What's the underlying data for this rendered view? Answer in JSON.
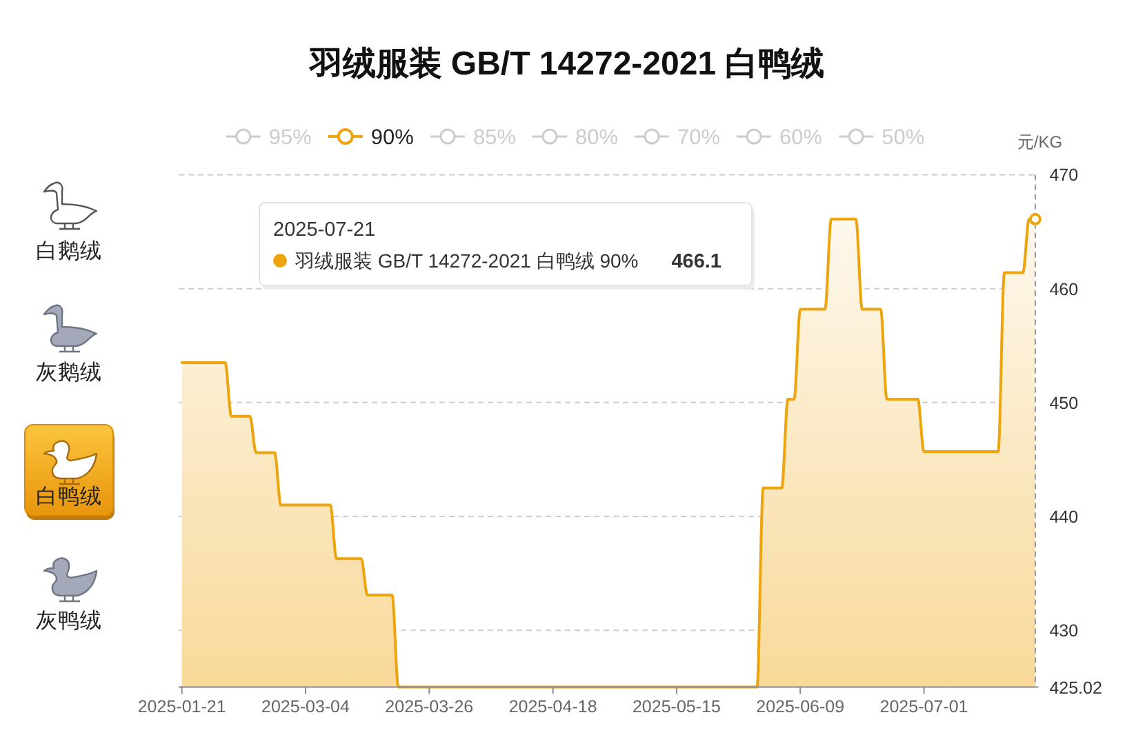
{
  "chart_data": {
    "type": "area",
    "title": "羽绒服装 GB/T 14272-2021 白鸭绒",
    "ylabel": "元/KG",
    "categories": [
      "2025-01-21",
      null,
      null,
      null,
      null,
      null,
      null,
      null,
      null,
      null,
      null,
      null,
      null,
      null,
      null,
      null,
      null,
      null,
      null,
      null,
      "2025-03-04",
      null,
      null,
      null,
      null,
      null,
      null,
      null,
      null,
      null,
      null,
      null,
      null,
      null,
      null,
      null,
      null,
      null,
      null,
      null,
      "2025-03-26",
      null,
      null,
      null,
      null,
      null,
      null,
      null,
      null,
      null,
      null,
      null,
      null,
      null,
      null,
      null,
      null,
      null,
      null,
      null,
      "2025-04-18",
      null,
      null,
      null,
      null,
      null,
      null,
      null,
      null,
      null,
      null,
      null,
      null,
      null,
      null,
      null,
      null,
      null,
      null,
      null,
      "2025-05-15",
      null,
      null,
      null,
      null,
      null,
      null,
      null,
      null,
      null,
      null,
      null,
      null,
      null,
      null,
      null,
      null,
      null,
      null,
      null,
      "2025-06-09",
      null,
      null,
      null,
      null,
      null,
      null,
      null,
      null,
      null,
      null,
      null,
      null,
      null,
      null,
      null,
      null,
      null,
      null,
      null,
      "2025-07-01",
      null,
      null,
      null,
      null,
      null,
      null,
      null,
      null,
      null,
      null,
      null,
      null,
      null,
      null,
      null,
      null,
      null,
      null
    ],
    "series": [
      {
        "name": "95%",
        "color": "#cccccc",
        "values": [
          null,
          null,
          null,
          null,
          null,
          null,
          null,
          null,
          null,
          null,
          null,
          null,
          null,
          null,
          null,
          null,
          null,
          null,
          null,
          null,
          null,
          null,
          null,
          null,
          null,
          null,
          null,
          null,
          null,
          null,
          null,
          null,
          null,
          null,
          null,
          null,
          null,
          null,
          null,
          null,
          null,
          null,
          null,
          null,
          null,
          null,
          null,
          null,
          null,
          null,
          null,
          null,
          null,
          null,
          null,
          null,
          null,
          null,
          null,
          null,
          null,
          null,
          null,
          null,
          null,
          null,
          null,
          null,
          null,
          null,
          null,
          null,
          null,
          null,
          null,
          null,
          null,
          null,
          null,
          null,
          null,
          null,
          null,
          null,
          null,
          null,
          null,
          null,
          null,
          null,
          null,
          null,
          null,
          null,
          null,
          null,
          null,
          null,
          null,
          null,
          null,
          null,
          null,
          null,
          null,
          null,
          null,
          null,
          null,
          null,
          null,
          null,
          null,
          null,
          null,
          null,
          null,
          null,
          null,
          null,
          null,
          null,
          null,
          null,
          null,
          null,
          null,
          null,
          null,
          null,
          null,
          null,
          null,
          null,
          null,
          null,
          null,
          null,
          null
        ]
      },
      {
        "name": "90%",
        "color": "#eea40c",
        "values": [
          453.5,
          453.5,
          453.5,
          453.5,
          453.5,
          453.5,
          453.5,
          453.5,
          448.8,
          448.8,
          448.8,
          448.8,
          445.6,
          445.6,
          445.6,
          445.6,
          441,
          441,
          441,
          441,
          441,
          441,
          441,
          441,
          441,
          436.3,
          436.3,
          436.3,
          436.3,
          436.3,
          433.1,
          433.1,
          433.1,
          433.1,
          433.1,
          425.02,
          425.02,
          425.02,
          425.02,
          425.02,
          425.02,
          425.02,
          425.02,
          425.02,
          425.02,
          425.02,
          425.02,
          425.02,
          425.02,
          425.02,
          425.02,
          425.02,
          425.02,
          425.02,
          425.02,
          425.02,
          425.02,
          425.02,
          425.02,
          425.02,
          425.02,
          425.02,
          425.02,
          425.02,
          425.02,
          425.02,
          425.02,
          425.02,
          425.02,
          425.02,
          425.02,
          425.02,
          425.02,
          425.02,
          425.02,
          425.02,
          425.02,
          425.02,
          425.02,
          425.02,
          425.02,
          425.02,
          425.02,
          425.02,
          425.02,
          425.02,
          425.02,
          425.02,
          425.02,
          425.02,
          425.02,
          425.02,
          425.02,
          425.02,
          442.5,
          442.5,
          442.5,
          442.5,
          450.3,
          450.3,
          458.2,
          458.2,
          458.2,
          458.2,
          458.2,
          466.1,
          466.1,
          466.1,
          466.1,
          466.1,
          458.2,
          458.2,
          458.2,
          458.2,
          450.3,
          450.3,
          450.3,
          450.3,
          450.3,
          450.3,
          445.7,
          445.7,
          445.7,
          445.7,
          445.7,
          445.7,
          445.7,
          445.7,
          445.7,
          445.7,
          445.7,
          445.7,
          445.7,
          461.4,
          461.4,
          461.4,
          461.4,
          466.1,
          466.1
        ]
      },
      {
        "name": "85%",
        "color": "#cccccc",
        "values": [
          null,
          null,
          null,
          null,
          null,
          null,
          null,
          null,
          null,
          null,
          null,
          null,
          null,
          null,
          null,
          null,
          null,
          null,
          null,
          null,
          null,
          null,
          null,
          null,
          null,
          null,
          null,
          null,
          null,
          null,
          null,
          null,
          null,
          null,
          null,
          null,
          null,
          null,
          null,
          null,
          null,
          null,
          null,
          null,
          null,
          null,
          null,
          null,
          null,
          null,
          null,
          null,
          null,
          null,
          null,
          null,
          null,
          null,
          null,
          null,
          null,
          null,
          null,
          null,
          null,
          null,
          null,
          null,
          null,
          null,
          null,
          null,
          null,
          null,
          null,
          null,
          null,
          null,
          null,
          null,
          null,
          null,
          null,
          null,
          null,
          null,
          null,
          null,
          null,
          null,
          null,
          null,
          null,
          null,
          null,
          null,
          null,
          null,
          null,
          null,
          null,
          null,
          null,
          null,
          null,
          null,
          null,
          null,
          null,
          null,
          null,
          null,
          null,
          null,
          null,
          null,
          null,
          null,
          null,
          null,
          null,
          null,
          null,
          null,
          null,
          null,
          null,
          null,
          null,
          null,
          null,
          null,
          null,
          null,
          null,
          null,
          null,
          null,
          null
        ]
      },
      {
        "name": "80%",
        "color": "#cccccc",
        "values": [
          null,
          null,
          null,
          null,
          null,
          null,
          null,
          null,
          null,
          null,
          null,
          null,
          null,
          null,
          null,
          null,
          null,
          null,
          null,
          null,
          null,
          null,
          null,
          null,
          null,
          null,
          null,
          null,
          null,
          null,
          null,
          null,
          null,
          null,
          null,
          null,
          null,
          null,
          null,
          null,
          null,
          null,
          null,
          null,
          null,
          null,
          null,
          null,
          null,
          null,
          null,
          null,
          null,
          null,
          null,
          null,
          null,
          null,
          null,
          null,
          null,
          null,
          null,
          null,
          null,
          null,
          null,
          null,
          null,
          null,
          null,
          null,
          null,
          null,
          null,
          null,
          null,
          null,
          null,
          null,
          null,
          null,
          null,
          null,
          null,
          null,
          null,
          null,
          null,
          null,
          null,
          null,
          null,
          null,
          null,
          null,
          null,
          null,
          null,
          null,
          null,
          null,
          null,
          null,
          null,
          null,
          null,
          null,
          null,
          null,
          null,
          null,
          null,
          null,
          null,
          null,
          null,
          null,
          null,
          null,
          null,
          null,
          null,
          null,
          null,
          null,
          null,
          null,
          null,
          null,
          null,
          null,
          null,
          null,
          null,
          null,
          null,
          null,
          null
        ]
      },
      {
        "name": "70%",
        "color": "#cccccc",
        "values": [
          null,
          null,
          null,
          null,
          null,
          null,
          null,
          null,
          null,
          null,
          null,
          null,
          null,
          null,
          null,
          null,
          null,
          null,
          null,
          null,
          null,
          null,
          null,
          null,
          null,
          null,
          null,
          null,
          null,
          null,
          null,
          null,
          null,
          null,
          null,
          null,
          null,
          null,
          null,
          null,
          null,
          null,
          null,
          null,
          null,
          null,
          null,
          null,
          null,
          null,
          null,
          null,
          null,
          null,
          null,
          null,
          null,
          null,
          null,
          null,
          null,
          null,
          null,
          null,
          null,
          null,
          null,
          null,
          null,
          null,
          null,
          null,
          null,
          null,
          null,
          null,
          null,
          null,
          null,
          null,
          null,
          null,
          null,
          null,
          null,
          null,
          null,
          null,
          null,
          null,
          null,
          null,
          null,
          null,
          null,
          null,
          null,
          null,
          null,
          null,
          null,
          null,
          null,
          null,
          null,
          null,
          null,
          null,
          null,
          null,
          null,
          null,
          null,
          null,
          null,
          null,
          null,
          null,
          null,
          null,
          null,
          null,
          null,
          null,
          null,
          null,
          null,
          null,
          null,
          null,
          null,
          null,
          null,
          null,
          null,
          null,
          null,
          null,
          null
        ]
      },
      {
        "name": "60%",
        "color": "#cccccc",
        "values": [
          null,
          null,
          null,
          null,
          null,
          null,
          null,
          null,
          null,
          null,
          null,
          null,
          null,
          null,
          null,
          null,
          null,
          null,
          null,
          null,
          null,
          null,
          null,
          null,
          null,
          null,
          null,
          null,
          null,
          null,
          null,
          null,
          null,
          null,
          null,
          null,
          null,
          null,
          null,
          null,
          null,
          null,
          null,
          null,
          null,
          null,
          null,
          null,
          null,
          null,
          null,
          null,
          null,
          null,
          null,
          null,
          null,
          null,
          null,
          null,
          null,
          null,
          null,
          null,
          null,
          null,
          null,
          null,
          null,
          null,
          null,
          null,
          null,
          null,
          null,
          null,
          null,
          null,
          null,
          null,
          null,
          null,
          null,
          null,
          null,
          null,
          null,
          null,
          null,
          null,
          null,
          null,
          null,
          null,
          null,
          null,
          null,
          null,
          null,
          null,
          null,
          null,
          null,
          null,
          null,
          null,
          null,
          null,
          null,
          null,
          null,
          null,
          null,
          null,
          null,
          null,
          null,
          null,
          null,
          null,
          null,
          null,
          null,
          null,
          null,
          null,
          null,
          null,
          null,
          null,
          null,
          null,
          null,
          null,
          null,
          null,
          null,
          null,
          null
        ]
      },
      {
        "name": "50%",
        "color": "#cccccc",
        "values": [
          null,
          null,
          null,
          null,
          null,
          null,
          null,
          null,
          null,
          null,
          null,
          null,
          null,
          null,
          null,
          null,
          null,
          null,
          null,
          null,
          null,
          null,
          null,
          null,
          null,
          null,
          null,
          null,
          null,
          null,
          null,
          null,
          null,
          null,
          null,
          null,
          null,
          null,
          null,
          null,
          null,
          null,
          null,
          null,
          null,
          null,
          null,
          null,
          null,
          null,
          null,
          null,
          null,
          null,
          null,
          null,
          null,
          null,
          null,
          null,
          null,
          null,
          null,
          null,
          null,
          null,
          null,
          null,
          null,
          null,
          null,
          null,
          null,
          null,
          null,
          null,
          null,
          null,
          null,
          null,
          null,
          null,
          null,
          null,
          null,
          null,
          null,
          null,
          null,
          null,
          null,
          null,
          null,
          null,
          null,
          null,
          null,
          null,
          null,
          null,
          null,
          null,
          null,
          null,
          null,
          null,
          null,
          null,
          null,
          null,
          null,
          null,
          null,
          null,
          null,
          null,
          null,
          null,
          null,
          null,
          null,
          null,
          null,
          null,
          null,
          null,
          null,
          null,
          null,
          null,
          null,
          null,
          null,
          null,
          null,
          null,
          null,
          null,
          null
        ]
      }
    ],
    "ylim": [
      425.02,
      470
    ],
    "yticks": [
      425.02,
      430,
      440,
      450,
      460,
      470
    ],
    "grid": "y",
    "legend": "top",
    "annotations": [
      "白鹅绒",
      "灰鹅绒",
      "白鸭绒",
      "灰鸭绒",
      "2025-07-21",
      "羽绒服装 GB/T 14272-2021 白鸭绒 90%",
      "466.1"
    ]
  }
}
